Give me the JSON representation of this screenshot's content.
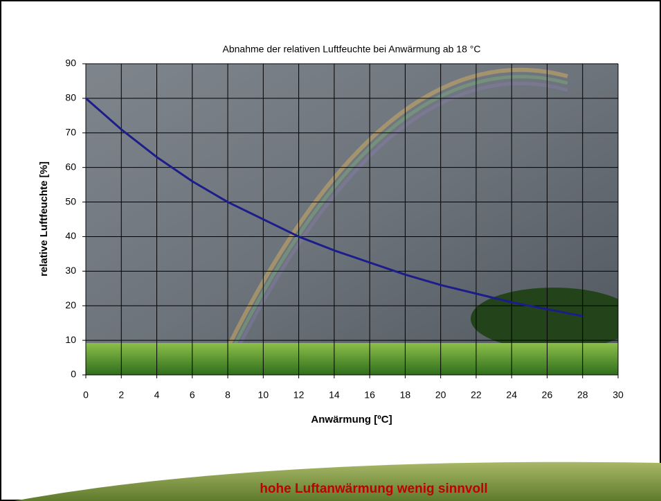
{
  "chart_data": {
    "type": "line",
    "title": "Abnahme der relativen Luftfeuchte bei Anwärmung ab 18 °C",
    "x_label": "Anwärmung [ºC]",
    "y_label": "relative Luftfeuchte [%]",
    "x": [
      0,
      2,
      4,
      6,
      8,
      10,
      12,
      14,
      16,
      18,
      20,
      22,
      24,
      26,
      28
    ],
    "series": [
      {
        "color": "#1c1c8a",
        "values": [
          80,
          71,
          63,
          56,
          50,
          45,
          40,
          36,
          32.5,
          29,
          26,
          23.5,
          21,
          19,
          17
        ]
      }
    ],
    "xlim": [
      0,
      30
    ],
    "xticks": [
      0,
      2,
      4,
      6,
      8,
      10,
      12,
      14,
      16,
      18,
      20,
      22,
      24,
      26,
      28,
      30
    ],
    "ylim": [
      0,
      90
    ],
    "yticks": [
      0,
      10,
      20,
      30,
      40,
      50,
      60,
      70,
      80,
      90
    ],
    "grid": true
  },
  "caption": "hohe Luftanwärmung wenig sinnvoll"
}
